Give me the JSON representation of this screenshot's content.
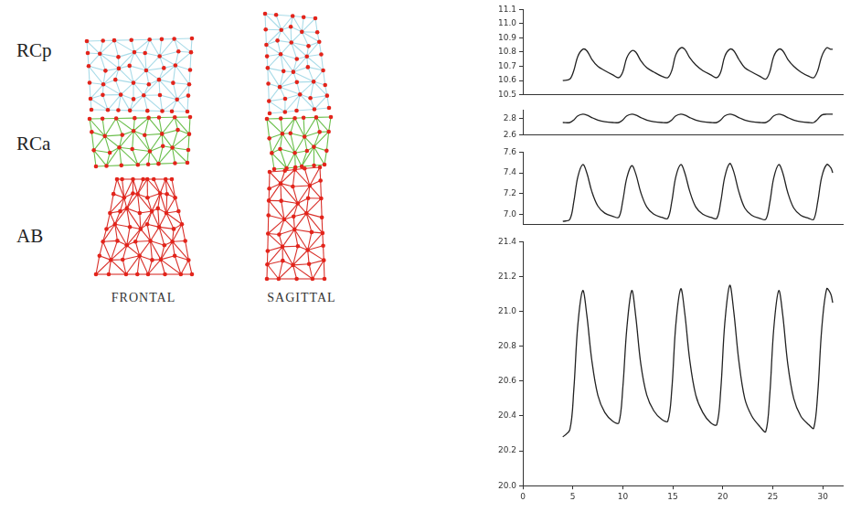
{
  "diagram": {
    "rows": [
      "RCp",
      "RCa",
      "AB"
    ],
    "views": [
      "FRONTAL",
      "SAGITTAL"
    ]
  },
  "chart_data": [
    {
      "type": "line",
      "color": "#222222",
      "grid": false,
      "tick_labels": "y",
      "x": [
        4.0,
        4.7,
        5.1,
        5.5,
        6.0,
        6.4,
        6.9,
        7.5,
        8.2,
        9.0,
        9.6,
        10.0,
        10.4,
        10.9,
        11.3,
        11.8,
        12.4,
        13.1,
        13.9,
        14.5,
        14.9,
        15.3,
        15.8,
        16.2,
        16.7,
        17.3,
        18.0,
        18.8,
        19.4,
        19.8,
        20.2,
        20.7,
        21.1,
        21.6,
        22.2,
        22.9,
        23.7,
        24.3,
        24.7,
        25.1,
        25.6,
        26.0,
        26.5,
        27.1,
        27.8,
        28.6,
        29.1,
        29.5,
        29.9,
        30.4,
        30.8,
        31.0
      ],
      "values": [
        10.6,
        10.61,
        10.67,
        10.77,
        10.82,
        10.81,
        10.75,
        10.7,
        10.67,
        10.64,
        10.62,
        10.66,
        10.76,
        10.81,
        10.8,
        10.74,
        10.69,
        10.66,
        10.63,
        10.62,
        10.67,
        10.78,
        10.83,
        10.82,
        10.76,
        10.71,
        10.67,
        10.64,
        10.62,
        10.66,
        10.77,
        10.82,
        10.81,
        10.75,
        10.69,
        10.66,
        10.63,
        10.61,
        10.66,
        10.77,
        10.82,
        10.81,
        10.75,
        10.7,
        10.66,
        10.63,
        10.62,
        10.67,
        10.77,
        10.83,
        10.82,
        10.82
      ],
      "xlim": [
        0,
        32
      ],
      "ylim": [
        10.5,
        11.1
      ],
      "yticks": [
        10.5,
        10.6,
        10.7,
        10.8,
        10.9,
        {
          "value": 11,
          "label": "11.0"
        },
        11.1
      ]
    },
    {
      "type": "line",
      "color": "#222222",
      "grid": false,
      "tick_labels": "y",
      "x": [
        4.0,
        4.7,
        5.1,
        5.5,
        6.0,
        6.4,
        6.9,
        7.5,
        8.2,
        9.0,
        9.6,
        10.0,
        10.4,
        10.9,
        11.3,
        11.8,
        12.4,
        13.1,
        13.9,
        14.5,
        14.9,
        15.3,
        15.8,
        16.2,
        16.7,
        17.3,
        18.0,
        18.8,
        19.4,
        19.8,
        20.2,
        20.7,
        21.1,
        21.6,
        22.2,
        22.9,
        23.7,
        24.3,
        24.7,
        25.1,
        25.6,
        26.0,
        26.5,
        27.1,
        27.8,
        28.6,
        29.1,
        29.5,
        29.9,
        30.4,
        30.8,
        31.0
      ],
      "values": [
        2.75,
        2.75,
        2.78,
        2.83,
        2.85,
        2.84,
        2.81,
        2.78,
        2.76,
        2.75,
        2.75,
        2.78,
        2.83,
        2.85,
        2.84,
        2.81,
        2.78,
        2.76,
        2.75,
        2.75,
        2.78,
        2.83,
        2.85,
        2.84,
        2.81,
        2.78,
        2.76,
        2.75,
        2.75,
        2.78,
        2.83,
        2.85,
        2.84,
        2.81,
        2.78,
        2.76,
        2.75,
        2.75,
        2.78,
        2.83,
        2.85,
        2.84,
        2.81,
        2.78,
        2.76,
        2.75,
        2.75,
        2.79,
        2.84,
        2.85,
        2.85,
        2.85
      ],
      "xlim": [
        0,
        32
      ],
      "ylim": [
        2.6,
        2.9
      ],
      "yticks": [
        2.6,
        2.8
      ]
    },
    {
      "type": "line",
      "color": "#222222",
      "grid": false,
      "tick_labels": "y",
      "x": [
        4.0,
        4.7,
        5.1,
        5.5,
        6.0,
        6.4,
        6.9,
        7.5,
        8.2,
        9.0,
        9.6,
        10.0,
        10.4,
        10.9,
        11.3,
        11.8,
        12.4,
        13.1,
        13.9,
        14.5,
        14.9,
        15.3,
        15.8,
        16.2,
        16.7,
        17.3,
        18.0,
        18.8,
        19.4,
        19.8,
        20.2,
        20.7,
        21.1,
        21.6,
        22.2,
        22.9,
        23.7,
        24.3,
        24.7,
        25.1,
        25.6,
        26.0,
        26.5,
        27.1,
        27.8,
        28.6,
        29.1,
        29.5,
        29.9,
        30.4,
        30.8,
        31.0
      ],
      "values": [
        6.93,
        6.95,
        7.12,
        7.36,
        7.48,
        7.4,
        7.22,
        7.08,
        7.01,
        6.98,
        6.97,
        7.13,
        7.35,
        7.47,
        7.39,
        7.21,
        7.07,
        7.0,
        6.97,
        6.96,
        7.12,
        7.36,
        7.48,
        7.4,
        7.22,
        7.07,
        7.0,
        6.97,
        6.96,
        7.12,
        7.36,
        7.49,
        7.41,
        7.22,
        7.06,
        6.99,
        6.96,
        6.95,
        7.11,
        7.35,
        7.48,
        7.4,
        7.21,
        7.06,
        6.99,
        6.96,
        6.95,
        7.12,
        7.36,
        7.48,
        7.45,
        7.4
      ],
      "xlim": [
        0,
        32
      ],
      "ylim": [
        6.9,
        7.6
      ],
      "yticks": [
        {
          "value": 7,
          "label": "7.0"
        },
        7.2,
        7.4,
        7.6
      ]
    },
    {
      "type": "line",
      "color": "#222222",
      "grid": false,
      "x": [
        4.0,
        4.7,
        5.1,
        5.5,
        6.0,
        6.4,
        6.9,
        7.5,
        8.2,
        9.0,
        9.6,
        10.0,
        10.4,
        10.9,
        11.3,
        11.8,
        12.4,
        13.1,
        13.9,
        14.5,
        14.9,
        15.3,
        15.8,
        16.2,
        16.7,
        17.3,
        18.0,
        18.8,
        19.4,
        19.8,
        20.2,
        20.7,
        21.1,
        21.6,
        22.2,
        22.9,
        23.7,
        24.3,
        24.7,
        25.1,
        25.6,
        26.0,
        26.5,
        27.1,
        27.8,
        28.6,
        29.1,
        29.5,
        29.9,
        30.4,
        30.8,
        31.0
      ],
      "values": [
        20.28,
        20.32,
        20.55,
        20.92,
        21.12,
        20.98,
        20.72,
        20.52,
        20.42,
        20.37,
        20.36,
        20.56,
        20.9,
        21.12,
        20.97,
        20.7,
        20.52,
        20.43,
        20.38,
        20.37,
        20.55,
        20.92,
        21.13,
        20.99,
        20.72,
        20.52,
        20.42,
        20.36,
        20.35,
        20.55,
        20.93,
        21.15,
        21.0,
        20.72,
        20.5,
        20.4,
        20.34,
        20.31,
        20.52,
        20.9,
        21.12,
        20.98,
        20.7,
        20.5,
        20.4,
        20.35,
        20.33,
        20.53,
        20.9,
        21.13,
        21.1,
        21.05
      ],
      "xlim": [
        0,
        32
      ],
      "xticks": [
        0,
        5,
        10,
        15,
        20,
        25,
        30
      ],
      "ylim": [
        20.0,
        21.4
      ],
      "yticks": [
        {
          "value": 20,
          "label": "20.0"
        },
        20.2,
        20.4,
        20.6,
        20.8,
        {
          "value": 21,
          "label": "21.0"
        },
        21.2,
        21.4
      ]
    }
  ]
}
